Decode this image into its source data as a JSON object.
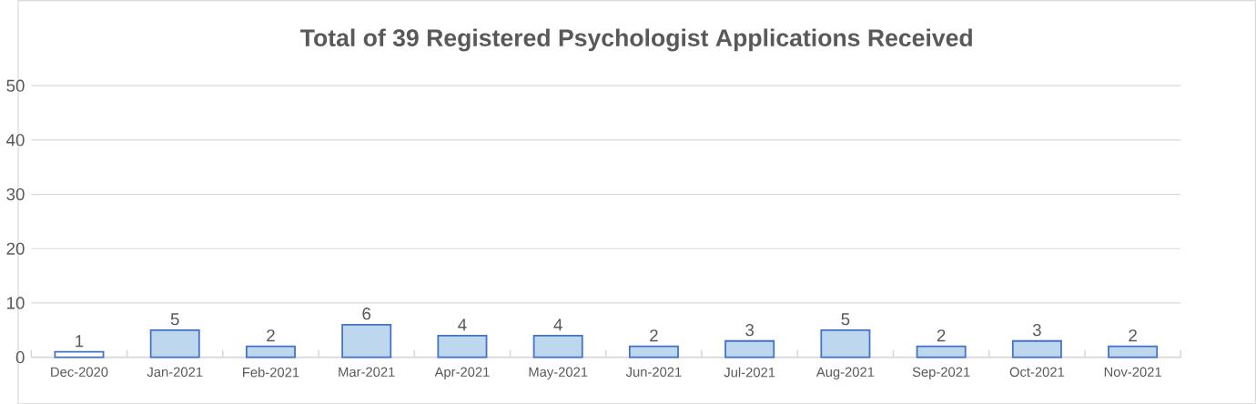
{
  "chart_data": {
    "type": "bar",
    "title": "Total of 39 Registered Psychologist Applications Received",
    "categories": [
      "Dec-2020",
      "Jan-2021",
      "Feb-2021",
      "Mar-2021",
      "Apr-2021",
      "May-2021",
      "Jun-2021",
      "Jul-2021",
      "Aug-2021",
      "Sep-2021",
      "Oct-2021",
      "Nov-2021"
    ],
    "values": [
      1,
      5,
      2,
      6,
      4,
      4,
      2,
      3,
      5,
      2,
      3,
      2
    ],
    "colors": [
      "#ffffff",
      "#bdd7ee",
      "#bdd7ee",
      "#bdd7ee",
      "#bdd7ee",
      "#bdd7ee",
      "#bdd7ee",
      "#bdd7ee",
      "#bdd7ee",
      "#bdd7ee",
      "#bdd7ee",
      "#bdd7ee"
    ],
    "ylim": [
      0,
      50
    ],
    "yticks": [
      0,
      10,
      20,
      30,
      40,
      50
    ],
    "grid": "y",
    "data_labels": true
  }
}
